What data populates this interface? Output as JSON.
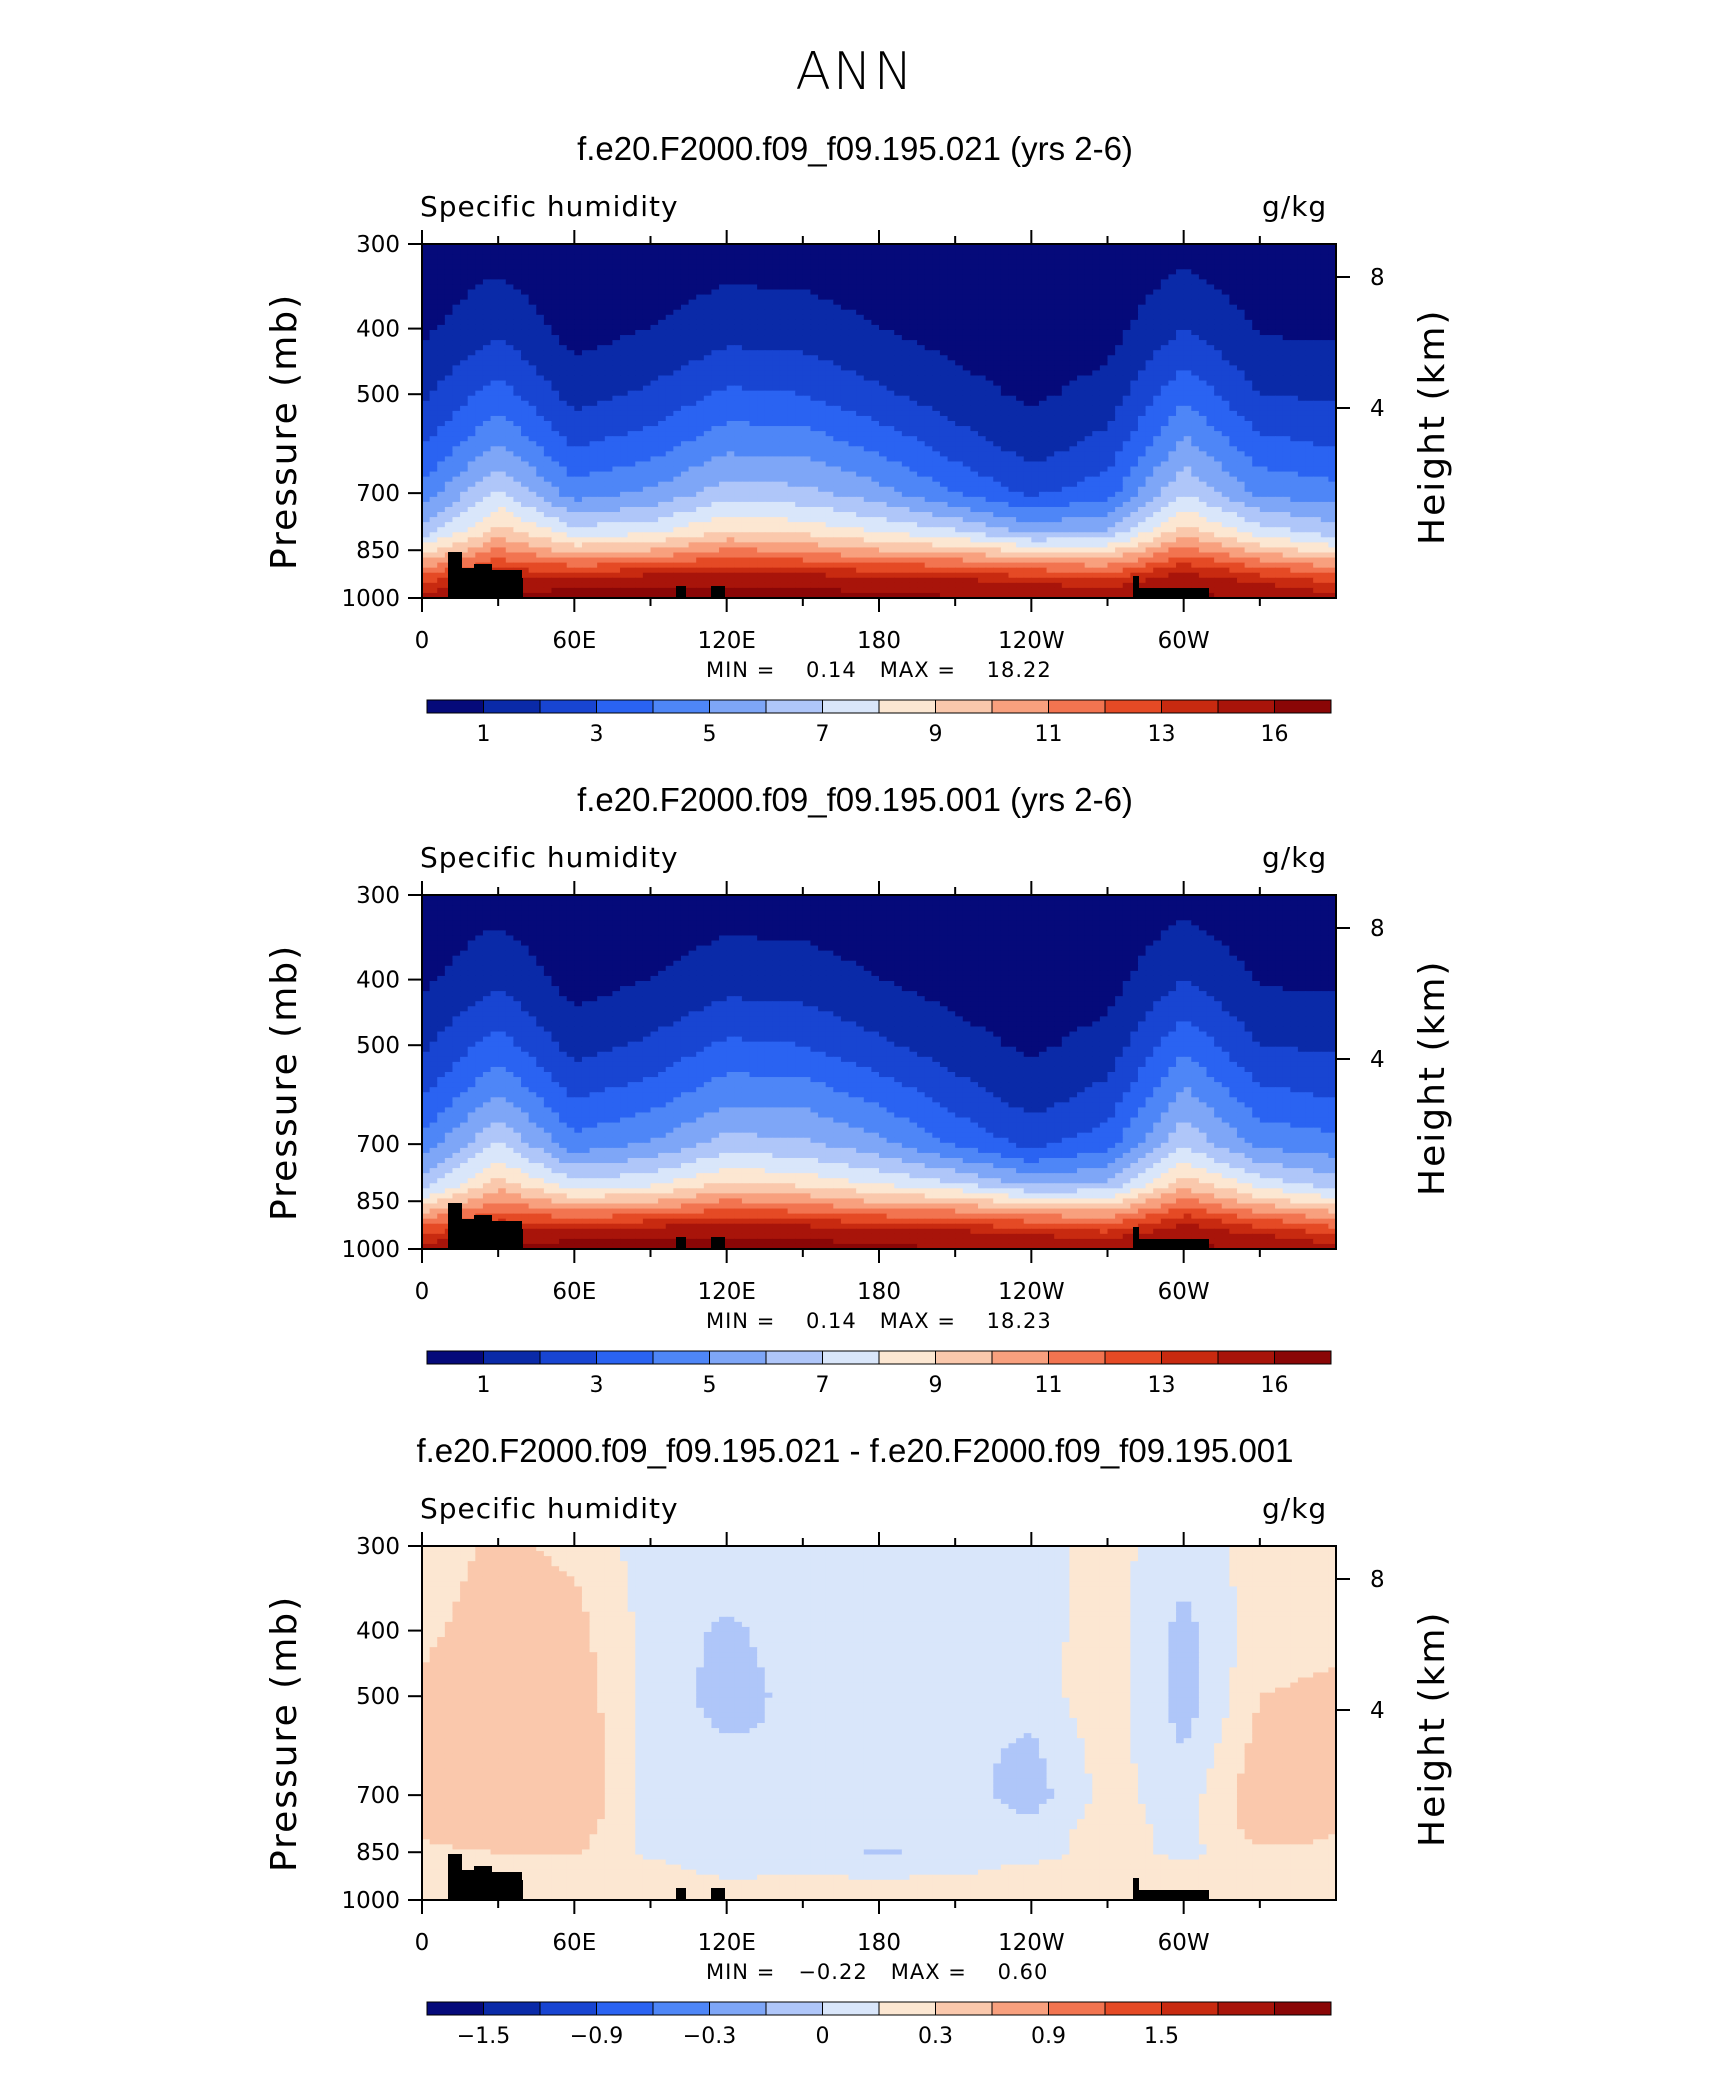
{
  "title": "ANN",
  "chart_data": [
    {
      "type": "heatmap",
      "title": "f.e20.F2000.f09_f09.195.021 (yrs 2-6)",
      "field": "Specific humidity",
      "units": "g/kg",
      "ylabel": "Pressure (mb)",
      "ylabel_right": "Height (km)",
      "x_ticks": [
        "0",
        "60E",
        "120E",
        "180",
        "120W",
        "60W"
      ],
      "x_tick_values": [
        0,
        60,
        120,
        180,
        240,
        300
      ],
      "x_range": [
        0,
        360
      ],
      "y_ticks": [
        "300",
        "400",
        "500",
        "700",
        "850",
        "1000"
      ],
      "y_tick_values": [
        300,
        400,
        500,
        700,
        850,
        1000
      ],
      "y_range": [
        1000,
        300
      ],
      "y_scale": "log",
      "right_ticks": [
        "8",
        "4"
      ],
      "min_label": "MIN =",
      "min_value": "0.14",
      "max_label": "MAX =",
      "max_value": "18.22",
      "colorbar_labels": [
        "1",
        "3",
        "5",
        "7",
        "9",
        "11",
        "13",
        "16"
      ],
      "colors": [
        "#050a7a",
        "#0a2aa8",
        "#1845d2",
        "#2a63f2",
        "#4e86f7",
        "#7ea6f7",
        "#afc6f9",
        "#d9e6fa",
        "#fce7d2",
        "#fac8ac",
        "#f8a07e",
        "#f27450",
        "#e54a25",
        "#c82a10",
        "#a8140a",
        "#8a0606"
      ],
      "levels": [
        1,
        2,
        3,
        4,
        5,
        6,
        7,
        8,
        9,
        10,
        11,
        12,
        13,
        14,
        16
      ],
      "approx_field": {
        "plevels_mb": [
          300,
          400,
          500,
          600,
          700,
          800,
          850,
          900,
          950,
          1000
        ],
        "lon": [
          0,
          30,
          60,
          90,
          120,
          150,
          180,
          210,
          240,
          270,
          300,
          330,
          360
        ],
        "values": [
          [
            0.3,
            0.6,
            0.2,
            0.3,
            0.5,
            0.5,
            0.3,
            0.2,
            0.1,
            0.2,
            0.7,
            0.3,
            0.3
          ],
          [
            0.8,
            1.8,
            0.6,
            1.0,
            1.6,
            1.5,
            1.0,
            0.6,
            0.3,
            0.6,
            2.0,
            0.9,
            0.8
          ],
          [
            1.8,
            3.5,
            1.6,
            2.2,
            3.2,
            3.0,
            2.2,
            1.4,
            0.8,
            1.4,
            3.8,
            2.0,
            1.8
          ],
          [
            3.0,
            5.2,
            3.0,
            3.6,
            4.8,
            4.7,
            3.8,
            2.6,
            1.6,
            2.4,
            5.4,
            3.4,
            3.0
          ],
          [
            4.4,
            7.2,
            4.5,
            5.2,
            6.5,
            6.3,
            5.4,
            4.0,
            2.8,
            3.6,
            7.0,
            4.8,
            4.4
          ],
          [
            6.5,
            9.5,
            7.5,
            7.8,
            9.2,
            8.8,
            8.0,
            7.2,
            5.8,
            6.2,
            9.6,
            7.6,
            6.5
          ],
          [
            8.5,
            11.2,
            9.6,
            10.0,
            11.2,
            10.8,
            10.0,
            9.6,
            8.6,
            8.6,
            11.5,
            9.6,
            8.5
          ],
          [
            11.0,
            12.8,
            12.2,
            12.6,
            13.2,
            12.9,
            12.4,
            12.2,
            11.6,
            11.2,
            13.4,
            12.0,
            11.0
          ],
          [
            13.0,
            14.6,
            15.2,
            15.4,
            15.6,
            15.3,
            14.8,
            14.6,
            14.0,
            13.4,
            15.2,
            14.0,
            13.0
          ],
          [
            14.5,
            16.0,
            17.4,
            17.8,
            18.0,
            17.4,
            16.6,
            16.2,
            15.6,
            15.0,
            16.8,
            15.6,
            14.5
          ]
        ]
      }
    },
    {
      "type": "heatmap",
      "title": "f.e20.F2000.f09_f09.195.001 (yrs 2-6)",
      "field": "Specific humidity",
      "units": "g/kg",
      "ylabel": "Pressure (mb)",
      "ylabel_right": "Height (km)",
      "x_ticks": [
        "0",
        "60E",
        "120E",
        "180",
        "120W",
        "60W"
      ],
      "x_tick_values": [
        0,
        60,
        120,
        180,
        240,
        300
      ],
      "x_range": [
        0,
        360
      ],
      "y_ticks": [
        "300",
        "400",
        "500",
        "700",
        "850",
        "1000"
      ],
      "y_tick_values": [
        300,
        400,
        500,
        700,
        850,
        1000
      ],
      "y_range": [
        1000,
        300
      ],
      "y_scale": "log",
      "right_ticks": [
        "8",
        "4"
      ],
      "min_label": "MIN =",
      "min_value": "0.14",
      "max_label": "MAX =",
      "max_value": "18.23",
      "colorbar_labels": [
        "1",
        "3",
        "5",
        "7",
        "9",
        "11",
        "13",
        "16"
      ],
      "colors": [
        "#050a7a",
        "#0a2aa8",
        "#1845d2",
        "#2a63f2",
        "#4e86f7",
        "#7ea6f7",
        "#afc6f9",
        "#d9e6fa",
        "#fce7d2",
        "#fac8ac",
        "#f8a07e",
        "#f27450",
        "#e54a25",
        "#c82a10",
        "#a8140a",
        "#8a0606"
      ],
      "levels": [
        1,
        2,
        3,
        4,
        5,
        6,
        7,
        8,
        9,
        10,
        11,
        12,
        13,
        14,
        16
      ],
      "approx_field": {
        "plevels_mb": [
          300,
          400,
          500,
          600,
          700,
          800,
          850,
          900,
          950,
          1000
        ],
        "lon": [
          0,
          30,
          60,
          90,
          120,
          150,
          180,
          210,
          240,
          270,
          300,
          330,
          360
        ],
        "values": [
          [
            0.3,
            0.6,
            0.2,
            0.3,
            0.5,
            0.5,
            0.3,
            0.2,
            0.1,
            0.2,
            0.7,
            0.3,
            0.3
          ],
          [
            0.8,
            1.8,
            0.6,
            1.0,
            1.6,
            1.5,
            1.0,
            0.6,
            0.3,
            0.6,
            2.0,
            0.9,
            0.8
          ],
          [
            1.8,
            3.5,
            1.6,
            2.2,
            3.2,
            3.0,
            2.2,
            1.4,
            0.8,
            1.4,
            3.8,
            2.0,
            1.8
          ],
          [
            3.0,
            5.2,
            3.0,
            3.6,
            4.8,
            4.7,
            3.8,
            2.6,
            1.6,
            2.4,
            5.4,
            3.4,
            3.0
          ],
          [
            4.4,
            7.1,
            4.4,
            5.1,
            6.4,
            6.2,
            5.3,
            3.9,
            2.7,
            3.6,
            6.9,
            4.7,
            4.4
          ],
          [
            6.4,
            9.4,
            7.4,
            7.7,
            9.1,
            8.7,
            7.9,
            7.1,
            5.7,
            6.1,
            9.5,
            7.5,
            6.4
          ],
          [
            8.4,
            11.1,
            9.5,
            9.9,
            11.1,
            10.7,
            9.9,
            9.5,
            8.5,
            8.5,
            11.4,
            9.5,
            8.4
          ],
          [
            10.9,
            12.7,
            12.1,
            12.5,
            13.1,
            12.8,
            12.3,
            12.1,
            11.5,
            11.1,
            13.3,
            11.9,
            10.9
          ],
          [
            12.9,
            14.5,
            15.1,
            15.3,
            15.5,
            15.2,
            14.7,
            14.5,
            13.9,
            13.3,
            15.1,
            13.9,
            12.9
          ],
          [
            14.4,
            15.9,
            17.3,
            17.7,
            18.0,
            17.3,
            16.5,
            16.1,
            15.5,
            14.9,
            16.7,
            15.5,
            14.4
          ]
        ]
      }
    },
    {
      "type": "heatmap",
      "title": "f.e20.F2000.f09_f09.195.021 - f.e20.F2000.f09_f09.195.001",
      "field": "Specific humidity",
      "units": "g/kg",
      "ylabel": "Pressure (mb)",
      "ylabel_right": "Height (km)",
      "x_ticks": [
        "0",
        "60E",
        "120E",
        "180",
        "120W",
        "60W"
      ],
      "x_tick_values": [
        0,
        60,
        120,
        180,
        240,
        300
      ],
      "x_range": [
        0,
        360
      ],
      "y_ticks": [
        "300",
        "400",
        "500",
        "700",
        "850",
        "1000"
      ],
      "y_tick_values": [
        300,
        400,
        500,
        700,
        850,
        1000
      ],
      "y_range": [
        1000,
        300
      ],
      "y_scale": "log",
      "right_ticks": [
        "8",
        "4"
      ],
      "min_label": "MIN =",
      "min_value": "−0.22",
      "max_label": "MAX =",
      "max_value": "0.60",
      "colorbar_labels": [
        "−1.5",
        "−0.9",
        "−0.3",
        "0",
        "0.3",
        "0.9",
        "1.5"
      ],
      "colors": [
        "#050a7a",
        "#0a2aa8",
        "#1845d2",
        "#2a63f2",
        "#4e86f7",
        "#7ea6f7",
        "#afc6f9",
        "#d9e6fa",
        "#fce7d2",
        "#fac8ac",
        "#f8a07e",
        "#f27450",
        "#e54a25",
        "#c82a10",
        "#a8140a",
        "#8a0606"
      ],
      "levels": [
        -1.8,
        -1.5,
        -1.2,
        -0.9,
        -0.6,
        -0.3,
        -0.1,
        0,
        0.1,
        0.3,
        0.6,
        0.9,
        1.2,
        1.5,
        1.8
      ],
      "approx_field": {
        "plevels_mb": [
          300,
          400,
          500,
          600,
          700,
          800,
          850,
          900,
          950,
          1000
        ],
        "lon": [
          0,
          30,
          60,
          90,
          120,
          150,
          180,
          210,
          240,
          270,
          300,
          330,
          360
        ],
        "values": [
          [
            0.05,
            0.12,
            0.08,
            -0.05,
            -0.04,
            -0.03,
            -0.04,
            -0.06,
            -0.03,
            0.03,
            -0.05,
            0.04,
            0.05
          ],
          [
            0.08,
            0.15,
            0.14,
            -0.04,
            -0.12,
            -0.05,
            -0.04,
            -0.06,
            -0.05,
            0.06,
            -0.14,
            0.06,
            0.08
          ],
          [
            0.12,
            0.18,
            0.16,
            -0.03,
            -0.15,
            -0.06,
            -0.05,
            -0.08,
            -0.06,
            0.08,
            -0.16,
            0.1,
            0.12
          ],
          [
            0.15,
            0.16,
            0.2,
            -0.04,
            -0.08,
            -0.1,
            -0.05,
            -0.07,
            -0.12,
            0.05,
            -0.1,
            0.14,
            0.15
          ],
          [
            0.12,
            0.2,
            0.22,
            -0.05,
            -0.06,
            -0.04,
            -0.06,
            -0.05,
            -0.15,
            0.04,
            -0.06,
            0.18,
            0.12
          ],
          [
            0.1,
            0.18,
            0.15,
            -0.04,
            -0.03,
            -0.04,
            -0.05,
            -0.04,
            -0.06,
            0.06,
            -0.04,
            0.14,
            0.1
          ],
          [
            0.08,
            0.1,
            0.12,
            -0.03,
            -0.06,
            -0.04,
            -0.12,
            -0.05,
            -0.05,
            0.05,
            -0.03,
            0.08,
            0.08
          ],
          [
            0.05,
            0.06,
            0.05,
            0.04,
            -0.04,
            -0.03,
            -0.04,
            -0.03,
            0.03,
            0.04,
            0.03,
            0.05,
            0.05
          ],
          [
            0.04,
            0.03,
            0.04,
            0.05,
            0.03,
            0.04,
            0.03,
            0.04,
            0.04,
            0.03,
            0.04,
            0.04,
            0.04
          ],
          [
            0.03,
            0.04,
            0.03,
            0.04,
            0.03,
            0.03,
            0.03,
            0.04,
            0.03,
            0.03,
            0.04,
            0.03,
            0.03
          ]
        ]
      }
    }
  ]
}
